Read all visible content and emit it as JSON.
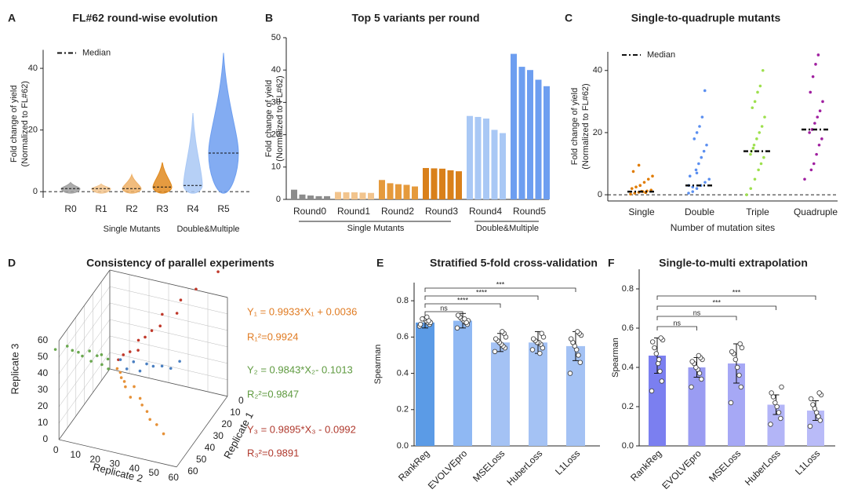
{
  "chart_data": [
    {
      "panel": "A",
      "type": "violin",
      "title": "FL#62 round-wise evolution",
      "y_label": [
        "Fold change of yield",
        "(Normalized to FL#62)"
      ],
      "categories": [
        "R0",
        "R1",
        "R2",
        "R3",
        "R4",
        "R5"
      ],
      "colors": [
        "#9e9e9e",
        "#f2c48d",
        "#eeb066",
        "#e08a1e",
        "#a9c8f5",
        "#6d9ef0"
      ],
      "medians": [
        1.0,
        1.0,
        1.0,
        1.5,
        2.0,
        12.5
      ],
      "max": [
        3.0,
        2.5,
        5.5,
        9.5,
        25.5,
        45
      ],
      "ylim": [
        -2,
        46
      ],
      "yticks": [
        0,
        20,
        40
      ],
      "legend": "Median",
      "groups": [
        {
          "label": "Single Mutants",
          "categories": [
            "R1",
            "R2",
            "R3"
          ]
        },
        {
          "label": "Double&Multiple",
          "categories": [
            "R4",
            "R5"
          ]
        }
      ]
    },
    {
      "panel": "B",
      "type": "bar",
      "title": "Top 5 variants per round",
      "y_label": [
        "Fold change of yield",
        "(Normalized to FL#62)"
      ],
      "categories": [
        "Round0",
        "Round1",
        "Round2",
        "Round3",
        "Round4",
        "Round5"
      ],
      "colors": [
        "#8c8c8c",
        "#f2c48d",
        "#e59a3c",
        "#d9801a",
        "#a9c8f5",
        "#6d9ef0"
      ],
      "values": [
        [
          3.0,
          1.5,
          1.2,
          1.0,
          1.0
        ],
        [
          2.3,
          2.2,
          2.2,
          2.1,
          2.0
        ],
        [
          6.0,
          5.0,
          4.7,
          4.5,
          4.0
        ],
        [
          9.7,
          9.6,
          9.5,
          9.0,
          8.7
        ],
        [
          25.8,
          25.5,
          25.0,
          21.5,
          20.5
        ],
        [
          45,
          41,
          40,
          37,
          35
        ]
      ],
      "ylim": [
        0,
        50
      ],
      "yticks": [
        0,
        10,
        20,
        30,
        40,
        50
      ],
      "group_lines": true,
      "groups": [
        {
          "label": "Single Mutants",
          "categories": [
            "Round0",
            "Round1",
            "Round2",
            "Round3"
          ]
        },
        {
          "label": "Double&Multiple",
          "categories": [
            "Round4",
            "Round5"
          ]
        }
      ]
    },
    {
      "panel": "C",
      "type": "strip",
      "title": "Single-to-quadruple mutants",
      "y_label": [
        "Fold change of yield",
        "(Normalized to FL#62)"
      ],
      "x_label": "Number of mutation sites",
      "categories": [
        "Single",
        "Double",
        "Triple",
        "Quadruple"
      ],
      "colors": [
        "#e07b00",
        "#5b8ff0",
        "#9ee04e",
        "#a020a0"
      ],
      "points": [
        [
          0.2,
          0.5,
          0.8,
          1.0,
          1.2,
          1.5,
          2,
          2.5,
          3,
          4,
          5,
          6,
          7.5,
          9.5,
          1.1,
          0.7
        ],
        [
          0.5,
          1,
          2,
          3,
          4,
          5,
          6,
          8,
          10,
          12,
          14,
          16,
          18,
          20,
          22,
          25,
          33.5,
          3,
          2.5,
          7
        ],
        [
          0,
          2,
          5,
          8,
          10,
          12,
          14,
          16,
          18,
          20,
          22,
          25,
          28,
          30,
          33,
          35,
          40,
          13,
          15
        ],
        [
          5,
          8,
          10,
          13,
          16,
          18,
          20,
          21,
          23,
          25,
          27,
          30,
          33,
          38,
          42,
          45
        ]
      ],
      "medians": [
        1,
        3,
        14,
        21
      ],
      "ylim": [
        -2,
        46
      ],
      "yticks": [
        0,
        20,
        40
      ],
      "legend": "Median"
    },
    {
      "panel": "D",
      "type": "scatter3d",
      "title": "Consistency of parallel experiments",
      "x_label": "Replicate 2",
      "y_label": "Replicate 1",
      "z_label": "Replicate 3",
      "ticks": [
        0,
        10,
        20,
        30,
        40,
        50,
        60
      ],
      "series": [
        {
          "color": "#c0392b",
          "x": [
            3,
            6,
            9,
            12,
            15,
            18,
            22,
            26,
            30,
            35,
            40,
            48,
            60
          ],
          "values": [
            3.5,
            5.5,
            9.5,
            12.5,
            14.5,
            18.5,
            21.5,
            26.5,
            29.5,
            35.5,
            39.5,
            48.5,
            60
          ]
        },
        {
          "color": "#6aa84f",
          "x": [
            3,
            6,
            9,
            12,
            15,
            18,
            22,
            26,
            30,
            35,
            40,
            48
          ],
          "values": [
            2.5,
            6.5,
            8.5,
            12.5,
            15.5,
            17.5,
            22.5,
            25.5,
            30.5,
            34.5,
            40.5,
            47.5
          ]
        },
        {
          "color": "#e69138",
          "x": [
            3,
            6,
            9,
            12,
            15,
            18,
            22,
            26,
            30,
            35,
            40,
            45,
            52
          ],
          "values": [
            3.5,
            5.5,
            9.5,
            11.5,
            15.5,
            17.5,
            22.5,
            25.5,
            30.5,
            34.5,
            40.5,
            45.5,
            51.5
          ]
        },
        {
          "color": "#4a7fc1",
          "x": [
            3,
            6,
            9,
            12,
            15,
            18,
            22,
            26,
            30
          ],
          "values": [
            2.5,
            6.5,
            8.5,
            12.5,
            14.5,
            18.5,
            21.5,
            26.5,
            29.5
          ]
        }
      ],
      "annotations": [
        {
          "text": "Y₁ = 0.9933*X₁ + 0.0036",
          "color": "#e07b22"
        },
        {
          "text": "R₁²=0.9924",
          "color": "#e07b22"
        },
        {
          "text": "Y₂ = 0.9843*X₂- 0.1013",
          "color": "#5e9a3f"
        },
        {
          "text": "R₂²=0.9847",
          "color": "#5e9a3f"
        },
        {
          "text": "Y₃ = 0.9895*X₃ - 0.0992",
          "color": "#b03a2e"
        },
        {
          "text": "R₃²=0.9891",
          "color": "#b03a2e"
        }
      ]
    },
    {
      "panel": "E",
      "type": "bar_error",
      "title": "Stratified 5-fold cross-validation",
      "y_label": [
        "Spearman"
      ],
      "categories": [
        "RankReg",
        "EVOLVEpro",
        "MSELoss",
        "HuberLoss",
        "L1Loss"
      ],
      "colors": [
        "#5b9be6",
        "#8fb8f3",
        "#a4c2f4",
        "#a4c2f4",
        "#a4c2f4"
      ],
      "values": [
        0.68,
        0.69,
        0.57,
        0.57,
        0.55
      ],
      "errors": [
        0.03,
        0.04,
        0.05,
        0.06,
        0.08
      ],
      "points": [
        [
          0.66,
          0.67,
          0.68,
          0.69,
          0.7,
          0.7,
          0.67,
          0.68,
          0.69,
          0.71
        ],
        [
          0.65,
          0.67,
          0.68,
          0.69,
          0.7,
          0.71,
          0.72,
          0.69,
          0.68,
          0.7
        ],
        [
          0.52,
          0.54,
          0.55,
          0.56,
          0.57,
          0.58,
          0.59,
          0.6,
          0.62,
          0.63
        ],
        [
          0.53,
          0.54,
          0.56,
          0.57,
          0.57,
          0.58,
          0.59,
          0.6,
          0.62,
          0.51
        ],
        [
          0.4,
          0.46,
          0.5,
          0.53,
          0.55,
          0.57,
          0.59,
          0.61,
          0.62,
          0.63
        ]
      ],
      "ylim": [
        0,
        0.9
      ],
      "yticks": [
        {
          "value": 0,
          "label": "0.0"
        },
        {
          "value": 0.2,
          "label": "0.2"
        },
        {
          "value": 0.4,
          "label": "0.4"
        },
        {
          "value": 0.6,
          "label": "0.6"
        },
        {
          "value": 0.8,
          "label": "0.8"
        }
      ],
      "brackets": [
        {
          "label": "ns",
          "between": [
            "RankReg",
            "EVOLVEpro"
          ]
        },
        {
          "label": "****",
          "between": [
            "RankReg",
            "MSELoss"
          ]
        },
        {
          "label": "****",
          "between": [
            "RankReg",
            "HuberLoss"
          ]
        },
        {
          "label": "***",
          "between": [
            "RankReg",
            "L1Loss"
          ]
        }
      ]
    },
    {
      "panel": "F",
      "type": "bar_error",
      "title": "Single-to-multi extrapolation",
      "y_label": [
        "Spearman"
      ],
      "categories": [
        "RankReg",
        "EVOLVEpro",
        "MSELoss",
        "HuberLoss",
        "L1Loss"
      ],
      "colors": [
        "#7b7ff0",
        "#9a9cf2",
        "#a6a8f5",
        "#b3b5f7",
        "#b9bbf8"
      ],
      "values": [
        0.46,
        0.4,
        0.42,
        0.21,
        0.18
      ],
      "errors": [
        0.09,
        0.05,
        0.1,
        0.05,
        0.05
      ],
      "points": [
        [
          0.28,
          0.33,
          0.38,
          0.42,
          0.47,
          0.5,
          0.53,
          0.54,
          0.55,
          0.44
        ],
        [
          0.3,
          0.34,
          0.37,
          0.39,
          0.4,
          0.42,
          0.43,
          0.44,
          0.45,
          0.46
        ],
        [
          0.22,
          0.3,
          0.36,
          0.4,
          0.44,
          0.47,
          0.48,
          0.5,
          0.52
        ],
        [
          0.11,
          0.14,
          0.17,
          0.2,
          0.22,
          0.25,
          0.27,
          0.3
        ],
        [
          0.1,
          0.13,
          0.15,
          0.17,
          0.19,
          0.21,
          0.24,
          0.26,
          0.27
        ]
      ],
      "ylim": [
        0,
        0.9
      ],
      "yticks": [
        {
          "value": 0,
          "label": "0.0"
        },
        {
          "value": 0.2,
          "label": "0.2"
        },
        {
          "value": 0.4,
          "label": "0.4"
        },
        {
          "value": 0.6,
          "label": "0.6"
        },
        {
          "value": 0.8,
          "label": "0.8"
        }
      ],
      "brackets": [
        {
          "label": "ns",
          "between": [
            "RankReg",
            "EVOLVEpro"
          ]
        },
        {
          "label": "ns",
          "between": [
            "RankReg",
            "MSELoss"
          ]
        },
        {
          "label": "***",
          "between": [
            "RankReg",
            "HuberLoss"
          ]
        },
        {
          "label": "***",
          "between": [
            "RankReg",
            "L1Loss"
          ]
        }
      ]
    }
  ]
}
